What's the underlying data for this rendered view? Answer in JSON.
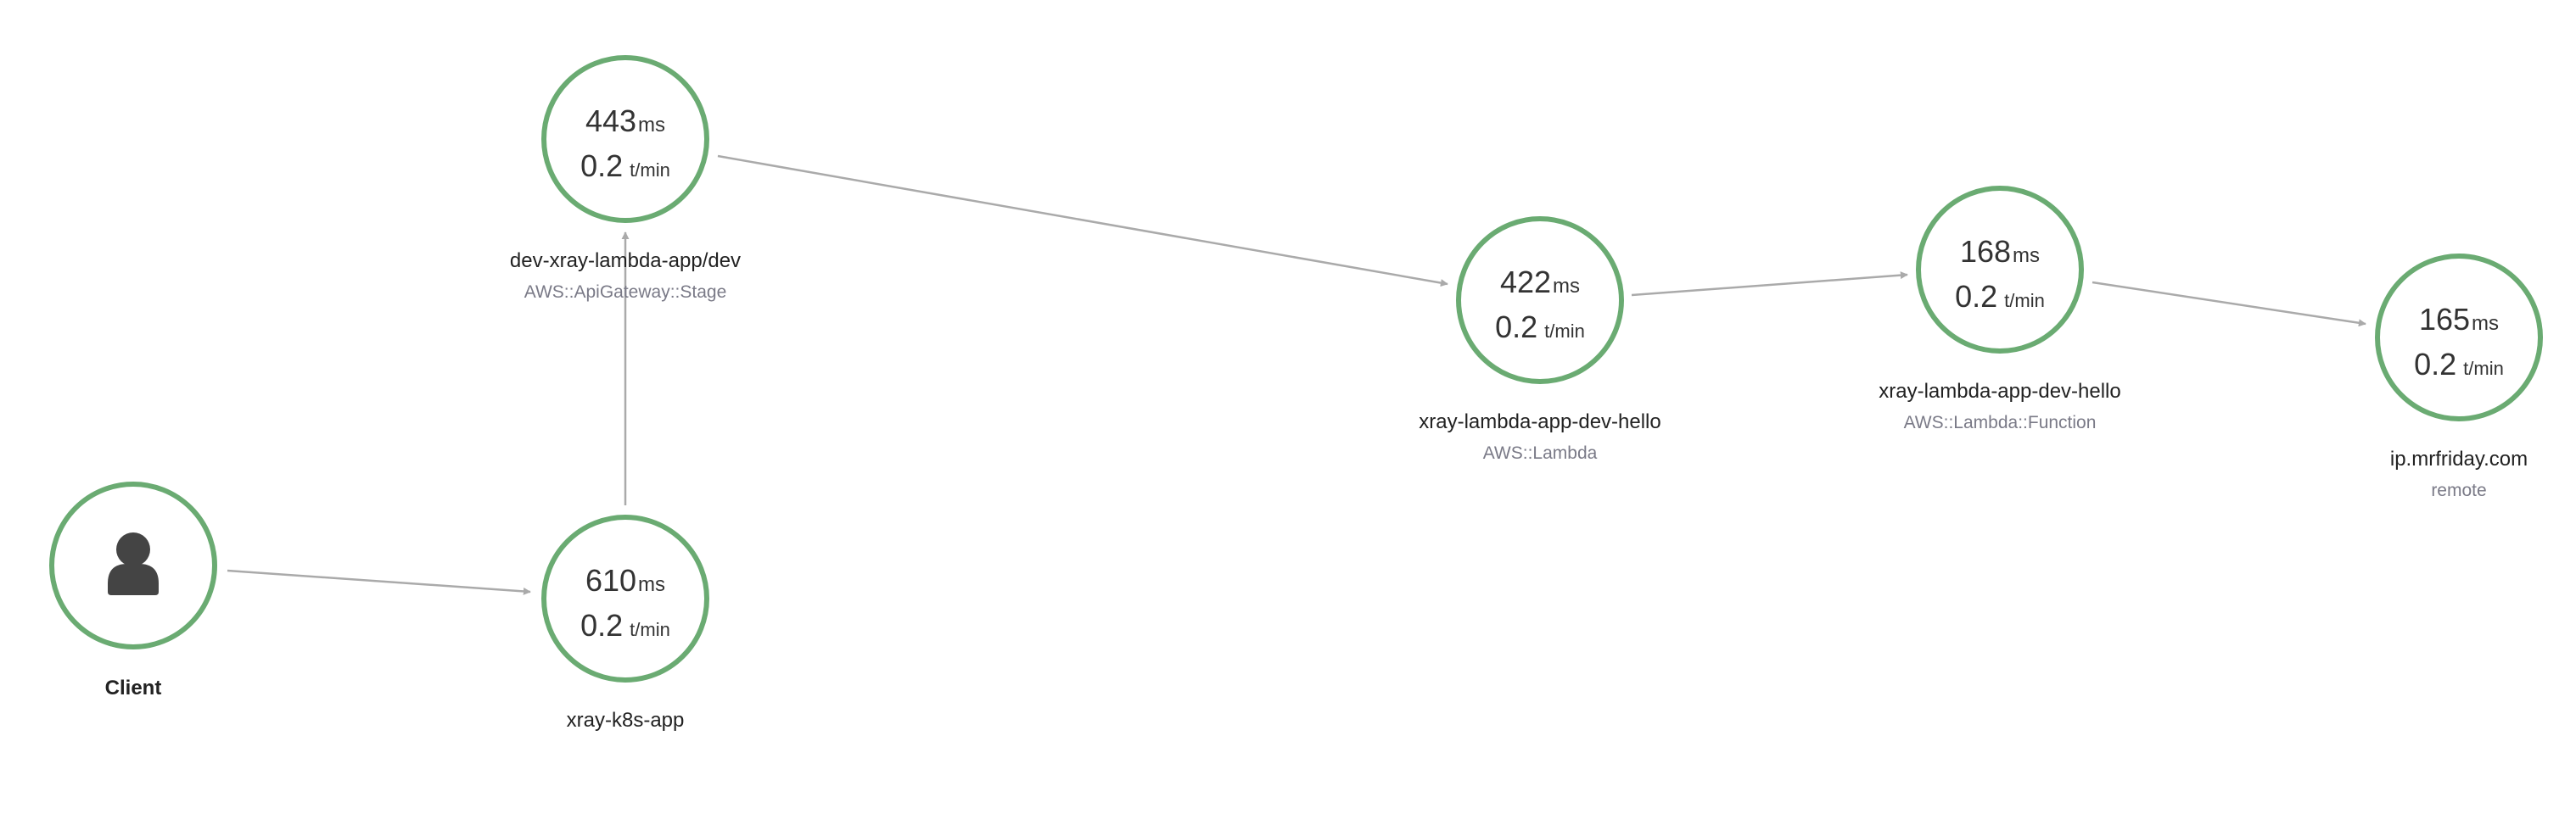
{
  "colors": {
    "node_ok": "#6aab72",
    "edge": "#aaaaaa",
    "text_primary": "#222222",
    "text_metric": "#333333",
    "text_type": "#7a7a87",
    "client_icon": "#444444"
  },
  "client": {
    "name": "Client",
    "icon": "user-icon"
  },
  "nodes": [
    {
      "id": "apigw",
      "latency": "443",
      "latency_unit": "ms",
      "rate": "0.2",
      "rate_unit": "t/min",
      "name": "dev-xray-lambda-app/dev",
      "type": "AWS::ApiGateway::Stage"
    },
    {
      "id": "k8s",
      "latency": "610",
      "latency_unit": "ms",
      "rate": "0.2",
      "rate_unit": "t/min",
      "name": "xray-k8s-app",
      "type": ""
    },
    {
      "id": "lambda",
      "latency": "422",
      "latency_unit": "ms",
      "rate": "0.2",
      "rate_unit": "t/min",
      "name": "xray-lambda-app-dev-hello",
      "type": "AWS::Lambda"
    },
    {
      "id": "lambda_fn",
      "latency": "168",
      "latency_unit": "ms",
      "rate": "0.2",
      "rate_unit": "t/min",
      "name": "xray-lambda-app-dev-hello",
      "type": "AWS::Lambda::Function"
    },
    {
      "id": "remote",
      "latency": "165",
      "latency_unit": "ms",
      "rate": "0.2",
      "rate_unit": "t/min",
      "name": "ip.mrfriday.com",
      "type": "remote"
    }
  ],
  "edges": [
    {
      "from": "client",
      "to": "k8s"
    },
    {
      "from": "k8s",
      "to": "apigw"
    },
    {
      "from": "apigw",
      "to": "lambda"
    },
    {
      "from": "lambda",
      "to": "lambda_fn"
    },
    {
      "from": "lambda_fn",
      "to": "remote"
    }
  ]
}
